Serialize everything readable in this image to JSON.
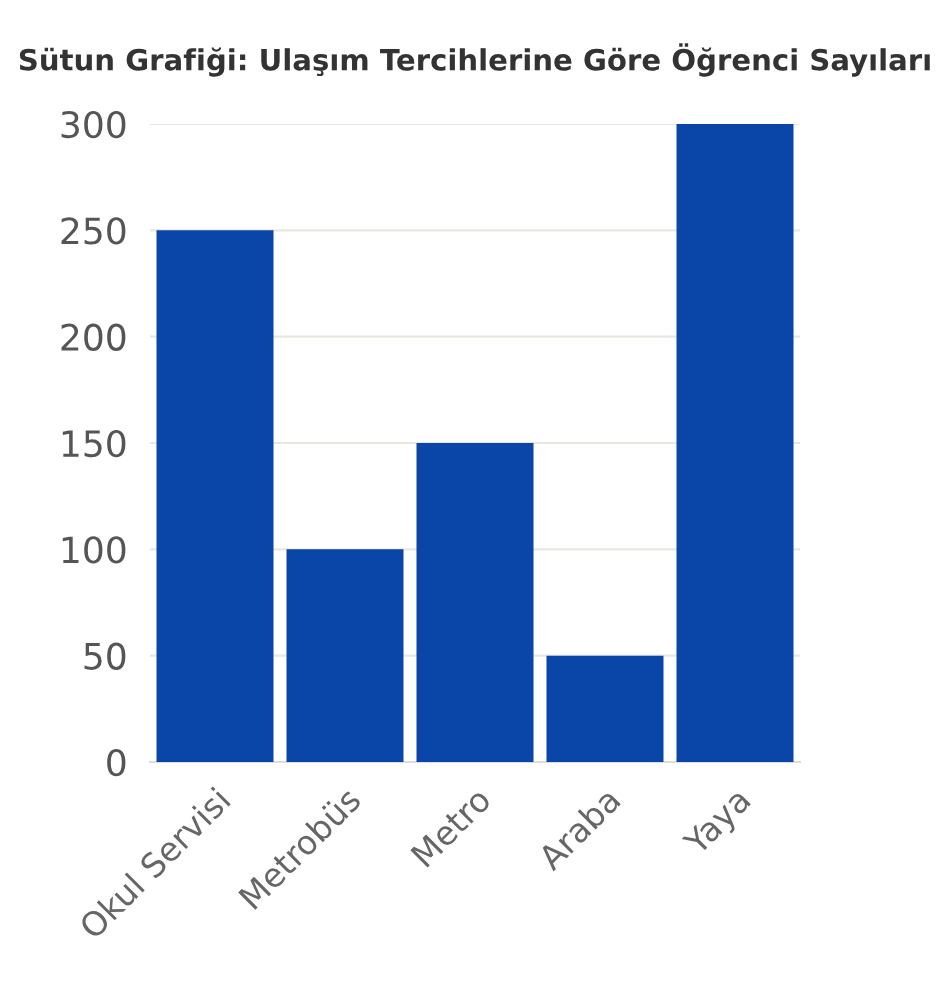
{
  "chart_data": {
    "type": "bar",
    "title": "Sütun Grafiği: Ulaşım Tercihlerine Göre Öğrenci Sayıları",
    "categories": [
      "Okul Servisi",
      "Metrobüs",
      "Metro",
      "Araba",
      "Yaya"
    ],
    "values": [
      250,
      100,
      150,
      50,
      300
    ],
    "color": "#0a45a8",
    "ylim": [
      0,
      300
    ],
    "yticks": [
      0,
      50,
      100,
      150,
      200,
      250,
      300
    ],
    "grid": "y"
  }
}
